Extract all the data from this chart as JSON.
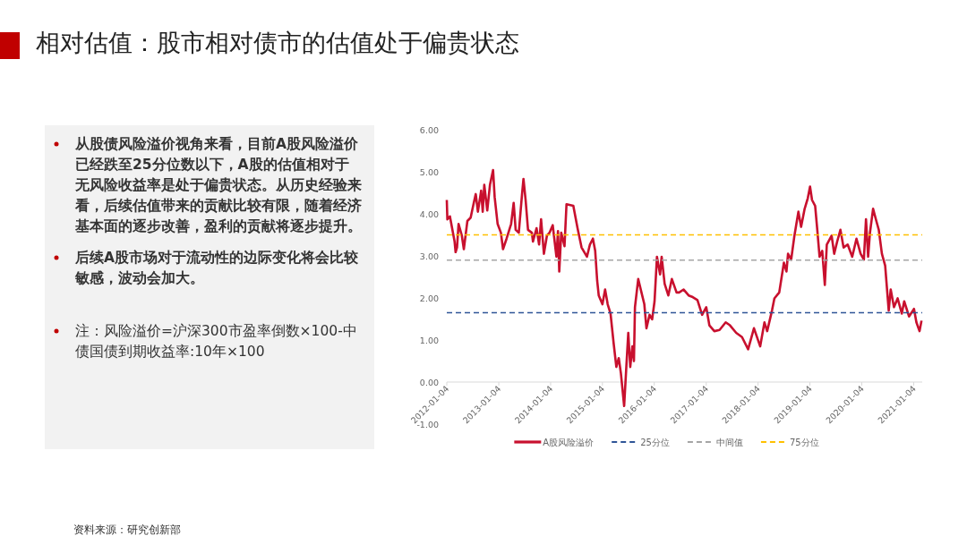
{
  "chart_data": [
    {
      "type": "other",
      "title": "相对估值：股市相对债市的估值处于偏贵状态",
      "annotations": [
        "从股债风险溢价视角来看，目前A股风险溢价已经跌至25分位数以下，A股的估值相对于无风险收益率是处于偏贵状态。从历史经验来看，后续估值带来的贡献比较有限，随着经济基本面的逐步改善，盈利的贡献将逐步提升。",
        "后续A股市场对于流动性的边际变化将会比较敏感，波动会加大。",
        "注：风险溢价=沪深300市盈率倒数×100-中债国债到期收益率:10年×100"
      ]
    },
    {
      "type": "line",
      "legend": "bottom",
      "line_style": "solid",
      "xlim": [
        "2012-01-04",
        "2021-03-05"
      ],
      "xticks": [
        "2012-01-04",
        "2013-01-04",
        "2014-01-04",
        "2015-01-04",
        "2016-01-04",
        "2017-01-04",
        "2018-01-04",
        "2019-01-04",
        "2020-01-04",
        "2021-01-04"
      ],
      "ylim": [
        -1,
        6
      ],
      "yticks": [
        {
          "value": -1,
          "label": "-1.00"
        },
        {
          "value": 0,
          "label": "0.00"
        },
        {
          "value": 1,
          "label": "1.00"
        },
        {
          "value": 2,
          "label": "2.00"
        },
        {
          "value": 3,
          "label": "3.00"
        },
        {
          "value": 4,
          "label": "4.00"
        },
        {
          "value": 5,
          "label": "5.00"
        },
        {
          "value": 6,
          "label": "6.00"
        }
      ],
      "series": [
        {
          "name": "A股风险溢价",
          "color": "#c8102e",
          "x": [
            "2012-01-04",
            "2012-01-08",
            "2012-01-26",
            "2012-02-28",
            "2012-03-06",
            "2012-03-16",
            "2012-03-27",
            "2012-04-19",
            "2012-05-03",
            "2012-05-28",
            "2012-06-20",
            "2012-07-12",
            "2012-07-26",
            "2012-08-10",
            "2012-09-02",
            "2012-09-13",
            "2012-09-24",
            "2012-10-15",
            "2012-11-03",
            "2012-11-25",
            "2012-12-06",
            "2012-12-27",
            "2013-01-19",
            "2013-02-03",
            "2013-02-28",
            "2013-04-01",
            "2013-04-19",
            "2013-05-03",
            "2013-05-25",
            "2013-06-17",
            "2013-06-27",
            "2013-07-12",
            "2013-07-29",
            "2013-08-25",
            "2013-09-02",
            "2013-09-27",
            "2013-10-15",
            "2013-10-29",
            "2013-11-18",
            "2013-12-09",
            "2013-12-27",
            "2014-01-19",
            "2014-02-14",
            "2014-02-25",
            "2014-03-06",
            "2014-03-20",
            "2014-04-12",
            "2014-04-26",
            "2014-06-13",
            "2014-07-15",
            "2014-08-10",
            "2014-09-17",
            "2014-10-08",
            "2014-10-29",
            "2014-11-14",
            "2014-11-28",
            "2014-12-09",
            "2015-01-04",
            "2015-01-23",
            "2015-02-10",
            "2015-03-02",
            "2015-03-24",
            "2015-04-12",
            "2015-04-29",
            "2015-05-14",
            "2015-06-06",
            "2015-06-20",
            "2015-07-05",
            "2015-07-19",
            "2015-08-03",
            "2015-08-14",
            "2015-08-21",
            "2015-09-13",
            "2015-10-01",
            "2015-10-26",
            "2015-11-10",
            "2015-12-02",
            "2015-12-20",
            "2016-01-06",
            "2016-01-23",
            "2016-02-14",
            "2016-02-25",
            "2016-03-17",
            "2016-04-12",
            "2016-05-07",
            "2016-06-09",
            "2016-06-27",
            "2016-07-29",
            "2016-09-02",
            "2016-10-01",
            "2016-11-03",
            "2016-12-06",
            "2017-01-04",
            "2017-01-26",
            "2017-03-02",
            "2017-04-08",
            "2017-05-21",
            "2017-06-20",
            "2017-08-03",
            "2017-09-13",
            "2017-10-26",
            "2017-12-06",
            "2018-01-19",
            "2018-02-18",
            "2018-03-09",
            "2018-04-12",
            "2018-04-29",
            "2018-06-02",
            "2018-07-05",
            "2018-07-23",
            "2018-08-03",
            "2018-08-25",
            "2018-09-17",
            "2018-10-15",
            "2018-11-03",
            "2018-11-28",
            "2018-12-20",
            "2019-01-05",
            "2019-01-19",
            "2019-02-10",
            "2019-02-25",
            "2019-03-13",
            "2019-04-01",
            "2019-04-19",
            "2019-05-03",
            "2019-06-06",
            "2019-06-24",
            "2019-07-15",
            "2019-08-07",
            "2019-08-29",
            "2019-09-27",
            "2019-10-29",
            "2019-11-28",
            "2019-12-27",
            "2020-01-19",
            "2020-02-03",
            "2020-02-18",
            "2020-03-02",
            "2020-03-24",
            "2020-04-15",
            "2020-05-03",
            "2020-05-25",
            "2020-06-17",
            "2020-07-12",
            "2020-07-26",
            "2020-08-18",
            "2020-09-13",
            "2020-10-12",
            "2020-10-29",
            "2020-12-02",
            "2021-01-06",
            "2021-01-23",
            "2021-02-14",
            "2021-02-28"
          ],
          "values": [
            4.33,
            3.87,
            3.94,
            3.34,
            3.09,
            3.2,
            3.76,
            3.48,
            3.16,
            3.83,
            3.91,
            4.26,
            4.47,
            4.05,
            4.55,
            4.05,
            4.69,
            4.08,
            4.69,
            5.04,
            4.4,
            3.76,
            3.55,
            3.16,
            3.41,
            3.76,
            4.26,
            3.62,
            3.55,
            4.47,
            4.83,
            4.33,
            3.62,
            3.55,
            3.34,
            3.66,
            3.27,
            3.87,
            3.05,
            3.48,
            3.55,
            3.73,
            2.98,
            3.59,
            2.63,
            3.55,
            3.23,
            4.23,
            4.19,
            3.62,
            3.2,
            2.98,
            3.27,
            3.41,
            3.12,
            2.41,
            2.06,
            1.85,
            2.2,
            1.85,
            1.63,
            0.92,
            0.36,
            0.57,
            0.21,
            -0.57,
            0.28,
            1.17,
            0.36,
            0.85,
            0.5,
            1.78,
            2.45,
            2.2,
            1.85,
            1.28,
            1.6,
            1.49,
            1.92,
            2.98,
            2.56,
            2.98,
            2.34,
            2.06,
            2.45,
            2.13,
            2.13,
            2.2,
            2.06,
            2.02,
            1.95,
            1.6,
            1.78,
            1.35,
            1.21,
            1.24,
            1.42,
            1.35,
            1.17,
            1.07,
            0.78,
            1.28,
            0.85,
            1.42,
            1.21,
            1.7,
            1.99,
            2.13,
            2.84,
            2.63,
            3.05,
            2.91,
            3.48,
            4.05,
            3.69,
            4.12,
            4.37,
            4.65,
            4.33,
            4.19,
            3.62,
            2.98,
            3.12,
            2.31,
            3.27,
            3.48,
            3.05,
            3.34,
            3.62,
            3.2,
            3.27,
            2.98,
            3.41,
            3.05,
            2.91,
            3.87,
            2.98,
            3.55,
            4.12,
            3.84,
            3.62,
            3.05,
            2.77,
            1.7,
            2.2,
            1.78,
            1.99,
            1.63,
            1.92,
            1.56,
            1.74,
            1.42,
            1.21,
            1.46
          ]
        }
      ],
      "ref_lines": [
        {
          "axis": "y",
          "value": 1.65,
          "label": "25分位",
          "color": "#2f5597",
          "line_style": "dashed"
        },
        {
          "axis": "y",
          "value": 2.9,
          "label": "中间值",
          "color": "#a5a5a5",
          "line_style": "dashed"
        },
        {
          "axis": "y",
          "value": 3.5,
          "label": "75分位",
          "color": "#ffc000",
          "line_style": "dashed"
        }
      ],
      "annotations": [
        "资料来源：研究创新部"
      ]
    }
  ]
}
